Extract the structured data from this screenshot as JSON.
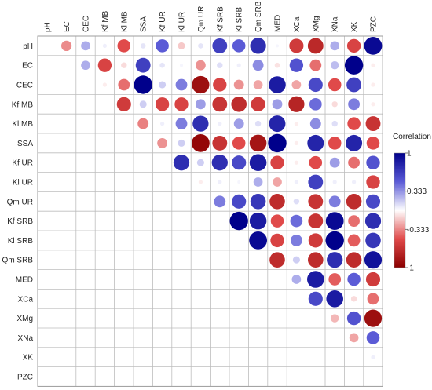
{
  "chart_data": {
    "type": "heatmap",
    "style": "upper-triangle correlation circles",
    "variables": [
      "pH",
      "EC",
      "CEC",
      "Kf MB",
      "Kl MB",
      "SSA",
      "Kf UR",
      "Kl UR",
      "Qm UR",
      "Kf SRB",
      "Kl SRB",
      "Qm SRB",
      "MED",
      "XCa",
      "XMg",
      "XNa",
      "XK",
      "PZC"
    ],
    "value_range": [
      -1,
      1
    ],
    "cells": [
      {
        "row": "pH",
        "col": "EC",
        "r": -0.32
      },
      {
        "row": "pH",
        "col": "CEC",
        "r": 0.25
      },
      {
        "row": "pH",
        "col": "Kf MB",
        "r": 0.05
      },
      {
        "row": "pH",
        "col": "Kl MB",
        "r": -0.5
      },
      {
        "row": "pH",
        "col": "SSA",
        "r": 0.08
      },
      {
        "row": "pH",
        "col": "Kf UR",
        "r": 0.5
      },
      {
        "row": "pH",
        "col": "Kl UR",
        "r": -0.15
      },
      {
        "row": "pH",
        "col": "Qm UR",
        "r": 0.08
      },
      {
        "row": "pH",
        "col": "Kf SRB",
        "r": 0.65
      },
      {
        "row": "pH",
        "col": "Kl SRB",
        "r": 0.5
      },
      {
        "row": "pH",
        "col": "Qm SRB",
        "r": 0.75
      },
      {
        "row": "pH",
        "col": "MED",
        "r": 0.03
      },
      {
        "row": "pH",
        "col": "XCa",
        "r": -0.6
      },
      {
        "row": "pH",
        "col": "XMg",
        "r": -0.72
      },
      {
        "row": "pH",
        "col": "XNa",
        "r": 0.25
      },
      {
        "row": "pH",
        "col": "XK",
        "r": -0.55
      },
      {
        "row": "pH",
        "col": "PZC",
        "r": 0.95
      },
      {
        "row": "EC",
        "col": "CEC",
        "r": 0.25
      },
      {
        "row": "EC",
        "col": "Kf MB",
        "r": -0.55
      },
      {
        "row": "EC",
        "col": "Kl MB",
        "r": -0.1
      },
      {
        "row": "EC",
        "col": "SSA",
        "r": 0.65
      },
      {
        "row": "EC",
        "col": "Kf UR",
        "r": 0.08
      },
      {
        "row": "EC",
        "col": "Kl UR",
        "r": 0.03
      },
      {
        "row": "EC",
        "col": "Qm UR",
        "r": -0.3
      },
      {
        "row": "EC",
        "col": "Kf SRB",
        "r": 0.1
      },
      {
        "row": "EC",
        "col": "Kl SRB",
        "r": 0.05
      },
      {
        "row": "EC",
        "col": "Qm SRB",
        "r": 0.35
      },
      {
        "row": "EC",
        "col": "MED",
        "r": -0.08
      },
      {
        "row": "EC",
        "col": "XCa",
        "r": 0.55
      },
      {
        "row": "EC",
        "col": "XMg",
        "r": -0.4
      },
      {
        "row": "EC",
        "col": "XNa",
        "r": 0.2
      },
      {
        "row": "EC",
        "col": "XK",
        "r": 1.0
      },
      {
        "row": "EC",
        "col": "PZC",
        "r": -0.05
      },
      {
        "row": "CEC",
        "col": "Kf MB",
        "r": -0.05
      },
      {
        "row": "CEC",
        "col": "Kl MB",
        "r": -0.4
      },
      {
        "row": "CEC",
        "col": "SSA",
        "r": 1.0
      },
      {
        "row": "CEC",
        "col": "Kf UR",
        "r": 0.15
      },
      {
        "row": "CEC",
        "col": "Kl UR",
        "r": 0.4
      },
      {
        "row": "CEC",
        "col": "Qm UR",
        "r": -0.9
      },
      {
        "row": "CEC",
        "col": "Kf SRB",
        "r": -0.55
      },
      {
        "row": "CEC",
        "col": "Kl SRB",
        "r": -0.3
      },
      {
        "row": "CEC",
        "col": "Qm SRB",
        "r": -0.25
      },
      {
        "row": "CEC",
        "col": "MED",
        "r": 0.85
      },
      {
        "row": "CEC",
        "col": "XCa",
        "r": -0.25
      },
      {
        "row": "CEC",
        "col": "XMg",
        "r": 0.6
      },
      {
        "row": "CEC",
        "col": "XNa",
        "r": -0.5
      },
      {
        "row": "CEC",
        "col": "XK",
        "r": 0.65
      },
      {
        "row": "CEC",
        "col": "PZC",
        "r": -0.05
      },
      {
        "row": "Kf MB",
        "col": "Kl MB",
        "r": -0.6
      },
      {
        "row": "Kf MB",
        "col": "SSA",
        "r": 0.15
      },
      {
        "row": "Kf MB",
        "col": "Kf UR",
        "r": -0.55
      },
      {
        "row": "Kf MB",
        "col": "Kl UR",
        "r": -0.55
      },
      {
        "row": "Kf MB",
        "col": "Qm UR",
        "r": 0.3
      },
      {
        "row": "Kf MB",
        "col": "Kf SRB",
        "r": -0.65
      },
      {
        "row": "Kf MB",
        "col": "Kl SRB",
        "r": -0.7
      },
      {
        "row": "Kf MB",
        "col": "Qm SRB",
        "r": -0.6
      },
      {
        "row": "Kf MB",
        "col": "MED",
        "r": 0.3
      },
      {
        "row": "Kf MB",
        "col": "XCa",
        "r": -0.75
      },
      {
        "row": "Kf MB",
        "col": "XMg",
        "r": 0.45
      },
      {
        "row": "Kf MB",
        "col": "XNa",
        "r": -0.1
      },
      {
        "row": "Kf MB",
        "col": "XK",
        "r": 0.4
      },
      {
        "row": "Kf MB",
        "col": "PZC",
        "r": -0.05
      },
      {
        "row": "Kl MB",
        "col": "SSA",
        "r": -0.35
      },
      {
        "row": "Kl MB",
        "col": "Kf UR",
        "r": 0.05
      },
      {
        "row": "Kl MB",
        "col": "Kl UR",
        "r": 0.4
      },
      {
        "row": "Kl MB",
        "col": "Qm UR",
        "r": 0.75
      },
      {
        "row": "Kl MB",
        "col": "Kf SRB",
        "r": 0.05
      },
      {
        "row": "Kl MB",
        "col": "Kl SRB",
        "r": 0.3
      },
      {
        "row": "Kl MB",
        "col": "Qm SRB",
        "r": 0.1
      },
      {
        "row": "Kl MB",
        "col": "MED",
        "r": 0.8
      },
      {
        "row": "Kl MB",
        "col": "XCa",
        "r": -0.05
      },
      {
        "row": "Kl MB",
        "col": "XMg",
        "r": 0.35
      },
      {
        "row": "Kl MB",
        "col": "XNa",
        "r": 0.1
      },
      {
        "row": "Kl MB",
        "col": "XK",
        "r": -0.5
      },
      {
        "row": "Kl MB",
        "col": "PZC",
        "r": -0.65
      },
      {
        "row": "SSA",
        "col": "Kf UR",
        "r": -0.3
      },
      {
        "row": "SSA",
        "col": "Kl UR",
        "r": 0.15
      },
      {
        "row": "SSA",
        "col": "Qm UR",
        "r": -0.95
      },
      {
        "row": "SSA",
        "col": "Kf SRB",
        "r": -0.65
      },
      {
        "row": "SSA",
        "col": "Kl SRB",
        "r": -0.5
      },
      {
        "row": "SSA",
        "col": "Qm SRB",
        "r": -0.85
      },
      {
        "row": "SSA",
        "col": "MED",
        "r": 1.0
      },
      {
        "row": "SSA",
        "col": "XCa",
        "r": -0.05
      },
      {
        "row": "SSA",
        "col": "XMg",
        "r": 0.8
      },
      {
        "row": "SSA",
        "col": "XNa",
        "r": -0.5
      },
      {
        "row": "SSA",
        "col": "XK",
        "r": 0.8
      },
      {
        "row": "SSA",
        "col": "PZC",
        "r": -0.5
      },
      {
        "row": "Kf UR",
        "col": "Kl UR",
        "r": 0.75
      },
      {
        "row": "Kf UR",
        "col": "Qm UR",
        "r": 0.15
      },
      {
        "row": "Kf UR",
        "col": "Kf SRB",
        "r": 0.75
      },
      {
        "row": "Kf UR",
        "col": "Kl SRB",
        "r": 0.6
      },
      {
        "row": "Kf UR",
        "col": "Qm SRB",
        "r": 0.85
      },
      {
        "row": "Kf UR",
        "col": "MED",
        "r": -0.55
      },
      {
        "row": "Kf UR",
        "col": "XCa",
        "r": -0.05
      },
      {
        "row": "Kf UR",
        "col": "XMg",
        "r": -0.5
      },
      {
        "row": "Kf UR",
        "col": "XNa",
        "r": 0.3
      },
      {
        "row": "Kf UR",
        "col": "XK",
        "r": -0.4
      },
      {
        "row": "Kf UR",
        "col": "PZC",
        "r": 0.55
      },
      {
        "row": "Kl UR",
        "col": "Qm UR",
        "r": -0.05
      },
      {
        "row": "Kl UR",
        "col": "Kf SRB",
        "r": 0.05
      },
      {
        "row": "Kl UR",
        "col": "Kl SRB",
        "r": 0.03
      },
      {
        "row": "Kl UR",
        "col": "Qm SRB",
        "r": 0.25
      },
      {
        "row": "Kl UR",
        "col": "MED",
        "r": -0.25
      },
      {
        "row": "Kl UR",
        "col": "XCa",
        "r": 0.05
      },
      {
        "row": "Kl UR",
        "col": "XMg",
        "r": 0.65
      },
      {
        "row": "Kl UR",
        "col": "XNa",
        "r": 0.05
      },
      {
        "row": "Kl UR",
        "col": "XK",
        "r": 0.05
      },
      {
        "row": "Kl UR",
        "col": "PZC",
        "r": -0.55
      },
      {
        "row": "Qm UR",
        "col": "Kf SRB",
        "r": 0.4
      },
      {
        "row": "Qm UR",
        "col": "Kl SRB",
        "r": 0.6
      },
      {
        "row": "Qm UR",
        "col": "Qm SRB",
        "r": 0.7
      },
      {
        "row": "Qm UR",
        "col": "MED",
        "r": -0.7
      },
      {
        "row": "Qm UR",
        "col": "XCa",
        "r": 0.1
      },
      {
        "row": "Qm UR",
        "col": "XMg",
        "r": -0.65
      },
      {
        "row": "Qm UR",
        "col": "XNa",
        "r": 0.4
      },
      {
        "row": "Qm UR",
        "col": "XK",
        "r": -0.7
      },
      {
        "row": "Qm UR",
        "col": "PZC",
        "r": 0.6
      },
      {
        "row": "Kf SRB",
        "col": "Kl SRB",
        "r": 1.0
      },
      {
        "row": "Kf SRB",
        "col": "Qm SRB",
        "r": 0.85
      },
      {
        "row": "Kf SRB",
        "col": "MED",
        "r": -0.5
      },
      {
        "row": "Kf SRB",
        "col": "XCa",
        "r": 0.45
      },
      {
        "row": "Kf SRB",
        "col": "XMg",
        "r": -0.65
      },
      {
        "row": "Kf SRB",
        "col": "XNa",
        "r": 0.95
      },
      {
        "row": "Kf SRB",
        "col": "XK",
        "r": -0.4
      },
      {
        "row": "Kf SRB",
        "col": "PZC",
        "r": 0.75
      },
      {
        "row": "Kl SRB",
        "col": "Qm SRB",
        "r": 0.95
      },
      {
        "row": "Kl SRB",
        "col": "MED",
        "r": -0.55
      },
      {
        "row": "Kl SRB",
        "col": "XCa",
        "r": 0.4
      },
      {
        "row": "Kl SRB",
        "col": "XMg",
        "r": -0.6
      },
      {
        "row": "Kl SRB",
        "col": "XNa",
        "r": 1.0
      },
      {
        "row": "Kl SRB",
        "col": "XK",
        "r": -0.45
      },
      {
        "row": "Kl SRB",
        "col": "PZC",
        "r": 0.7
      },
      {
        "row": "Qm SRB",
        "col": "MED",
        "r": -0.7
      },
      {
        "row": "Qm SRB",
        "col": "XCa",
        "r": 0.15
      },
      {
        "row": "Qm SRB",
        "col": "XMg",
        "r": -0.7
      },
      {
        "row": "Qm SRB",
        "col": "XNa",
        "r": 0.75
      },
      {
        "row": "Qm SRB",
        "col": "XK",
        "r": -0.7
      },
      {
        "row": "Qm SRB",
        "col": "PZC",
        "r": 0.9
      },
      {
        "row": "MED",
        "col": "XCa",
        "r": 0.25
      },
      {
        "row": "MED",
        "col": "XMg",
        "r": 0.85
      },
      {
        "row": "MED",
        "col": "XNa",
        "r": -0.45
      },
      {
        "row": "MED",
        "col": "XK",
        "r": 0.5
      },
      {
        "row": "MED",
        "col": "PZC",
        "r": -0.6
      },
      {
        "row": "XCa",
        "col": "XMg",
        "r": 0.6
      },
      {
        "row": "XCa",
        "col": "XNa",
        "r": 0.85
      },
      {
        "row": "XCa",
        "col": "XK",
        "r": -0.1
      },
      {
        "row": "XCa",
        "col": "PZC",
        "r": -0.4
      },
      {
        "row": "XMg",
        "col": "XNa",
        "r": -0.2
      },
      {
        "row": "XMg",
        "col": "XK",
        "r": 0.55
      },
      {
        "row": "XMg",
        "col": "PZC",
        "r": -0.9
      },
      {
        "row": "XNa",
        "col": "XK",
        "r": -0.25
      },
      {
        "row": "XNa",
        "col": "PZC",
        "r": 0.5
      },
      {
        "row": "XK",
        "col": "PZC",
        "r": 0.05
      }
    ],
    "colors": {
      "negative": "#8b0000",
      "mid": "#ffffff",
      "positive": "#00008b"
    },
    "legend": {
      "title": "Correlation",
      "ticks": [
        1,
        0.333,
        -0.333,
        -1
      ],
      "placement": "right"
    },
    "grid": true
  }
}
